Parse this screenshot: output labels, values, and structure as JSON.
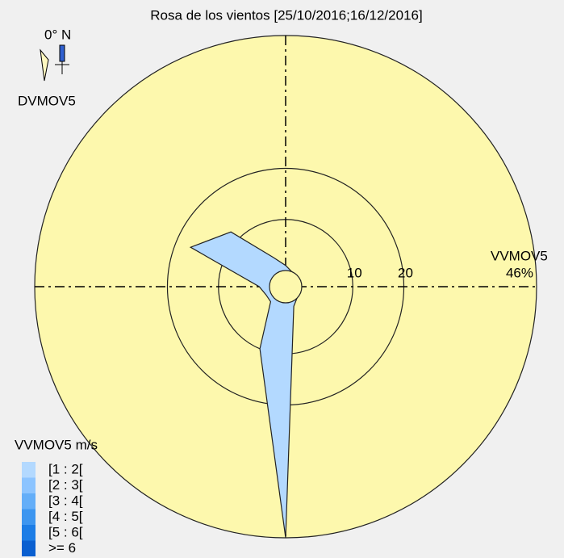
{
  "chart_data": {
    "type": "windrose",
    "title": "Rosa de los vientos [25/10/2016;16/12/2016]",
    "north_label": "0° N",
    "direction_variable": "DVMOV5",
    "speed_variable": "VVMOV5",
    "legend_title": "VVMOV5 m/s",
    "x": [
      0,
      22.5,
      45,
      67.5,
      90,
      112.5,
      135,
      157.5,
      180,
      202.5,
      225,
      247.5,
      270,
      292.5,
      315,
      337.5
    ],
    "series": [
      {
        "name": "[1 : 2[",
        "color": "#b3d9ff",
        "values": [
          1,
          0,
          0,
          0,
          0,
          0,
          0,
          1,
          46,
          10,
          1,
          1,
          2,
          17,
          12,
          3
        ]
      }
    ],
    "legend_entries": [
      {
        "name": "[1 : 2[",
        "color": "#b3d9ff"
      },
      {
        "name": "[2 : 3[",
        "color": "#8cc4ff"
      },
      {
        "name": "[3 : 4[",
        "color": "#64aef8"
      },
      {
        "name": "[4 : 5[",
        "color": "#3d96f0"
      },
      {
        "name": "[5 : 6[",
        "color": "#1c7de6"
      },
      {
        "name": ">= 6",
        "color": "#0a5fd0"
      }
    ],
    "rlim": [
      0,
      46
    ],
    "rticks": [
      10,
      20,
      {
        "value": 46,
        "label": "46%"
      }
    ],
    "background": "#fdf8ad"
  }
}
